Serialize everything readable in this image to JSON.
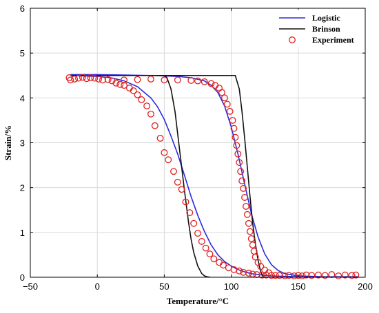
{
  "chart_data": {
    "type": "line",
    "xlabel": "Temperature/°C",
    "ylabel": "Strain/%",
    "xlim": [
      -50,
      200
    ],
    "ylim": [
      0,
      6
    ],
    "x_ticks": [
      -50,
      0,
      50,
      100,
      150,
      200
    ],
    "y_ticks": [
      0,
      1,
      2,
      3,
      4,
      5,
      6
    ],
    "grid": true,
    "legend_position": "top-right",
    "series": [
      {
        "name": "Logistic",
        "kind": "line",
        "color": "#2a2ae0",
        "x": [
          -20,
          -10,
          0,
          10,
          20,
          30,
          40,
          45,
          50,
          55,
          60,
          65,
          70,
          75,
          80,
          85,
          90,
          95,
          100,
          105,
          110,
          115,
          120,
          125,
          130,
          140,
          150,
          160,
          170,
          180,
          190,
          195
        ],
        "y": [
          4.5,
          4.49,
          4.48,
          4.45,
          4.38,
          4.25,
          4.0,
          3.8,
          3.52,
          3.15,
          2.75,
          2.28,
          1.8,
          1.38,
          1.02,
          0.72,
          0.5,
          0.35,
          0.25,
          0.17,
          0.12,
          0.08,
          0.06,
          0.04,
          0.03,
          0.02,
          0.01,
          0.01,
          0.01,
          0.01,
          0.01,
          0.01
        ],
        "x2": [
          -20,
          0,
          20,
          40,
          60,
          70,
          80,
          85,
          90,
          95,
          100,
          105,
          110,
          115,
          120,
          125,
          130,
          135,
          140,
          150,
          160,
          170,
          180,
          190,
          195
        ],
        "y2": [
          4.52,
          4.52,
          4.51,
          4.5,
          4.48,
          4.45,
          4.38,
          4.28,
          4.12,
          3.82,
          3.35,
          2.75,
          2.08,
          1.42,
          0.9,
          0.52,
          0.28,
          0.15,
          0.08,
          0.03,
          0.02,
          0.01,
          0.01,
          0.01,
          0.01
        ]
      },
      {
        "name": "Brinson",
        "kind": "line",
        "color": "#111111",
        "x": [
          -20,
          0,
          20,
          40,
          50,
          52,
          55,
          58,
          60,
          62,
          65,
          68,
          70,
          72,
          75,
          78,
          80,
          82,
          84
        ],
        "y": [
          4.5,
          4.5,
          4.5,
          4.5,
          4.5,
          4.45,
          4.2,
          3.7,
          3.2,
          2.7,
          1.95,
          1.25,
          0.85,
          0.55,
          0.25,
          0.08,
          0.03,
          0.01,
          0.0
        ],
        "x2": [
          -20,
          0,
          20,
          40,
          60,
          80,
          100,
          103,
          106,
          108,
          110,
          112,
          114,
          116,
          118,
          120,
          122,
          124
        ],
        "y2": [
          4.5,
          4.5,
          4.5,
          4.5,
          4.5,
          4.5,
          4.5,
          4.5,
          4.2,
          3.7,
          3.1,
          2.45,
          1.8,
          1.2,
          0.75,
          0.38,
          0.12,
          0.0
        ]
      },
      {
        "name": "Experiment",
        "kind": "scatter",
        "color": "#e02020",
        "x": [
          -21,
          -20,
          -17,
          -14,
          -11,
          -8,
          -5,
          -2,
          1,
          4,
          8,
          11,
          14,
          17,
          20,
          24,
          27,
          30,
          33,
          37,
          40,
          43,
          47,
          50,
          53,
          57,
          60,
          63,
          66,
          69,
          72,
          75,
          78,
          81,
          84,
          87,
          91,
          94,
          98,
          102,
          106,
          109,
          113,
          116,
          119,
          123,
          126,
          130,
          133,
          136,
          140,
          143,
          147,
          150,
          153,
          156,
          160,
          165,
          170,
          175,
          180,
          185,
          190,
          193
        ],
        "y": [
          4.45,
          4.4,
          4.42,
          4.44,
          4.46,
          4.43,
          4.45,
          4.44,
          4.42,
          4.4,
          4.41,
          4.38,
          4.33,
          4.3,
          4.28,
          4.22,
          4.16,
          4.07,
          3.96,
          3.82,
          3.64,
          3.38,
          3.1,
          2.78,
          2.62,
          2.36,
          2.12,
          1.96,
          1.68,
          1.44,
          1.2,
          0.98,
          0.8,
          0.65,
          0.52,
          0.41,
          0.33,
          0.27,
          0.21,
          0.17,
          0.14,
          0.11,
          0.09,
          0.07,
          0.06,
          0.05,
          0.05,
          0.04,
          0.04,
          0.04,
          0.03,
          0.04,
          0.03,
          0.04,
          0.03,
          0.05,
          0.04,
          0.05,
          0.04,
          0.06,
          0.03,
          0.05,
          0.04,
          0.05
        ],
        "x2": [
          20,
          30,
          40,
          50,
          60,
          70,
          75,
          80,
          85,
          88,
          91,
          93,
          95,
          97,
          99,
          101,
          102,
          103,
          104,
          105,
          106,
          107,
          108,
          109,
          110,
          111,
          112,
          113,
          114,
          115,
          116,
          117,
          118,
          120,
          122,
          125,
          128
        ],
        "y2": [
          4.4,
          4.41,
          4.42,
          4.4,
          4.4,
          4.39,
          4.38,
          4.36,
          4.32,
          4.28,
          4.22,
          4.12,
          4.0,
          3.86,
          3.7,
          3.5,
          3.32,
          3.12,
          2.94,
          2.75,
          2.56,
          2.36,
          2.15,
          1.98,
          1.78,
          1.58,
          1.4,
          1.2,
          1.02,
          0.86,
          0.72,
          0.58,
          0.45,
          0.33,
          0.24,
          0.16,
          0.1
        ]
      }
    ]
  }
}
